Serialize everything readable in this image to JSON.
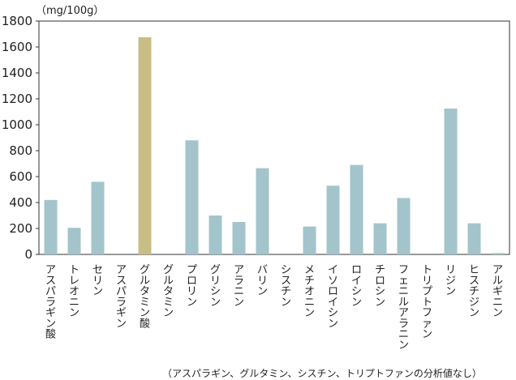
{
  "chart_data": {
    "type": "bar",
    "unit_label": "（mg/100g）",
    "ylim": [
      0,
      1800
    ],
    "yticks": [
      0,
      200,
      400,
      600,
      800,
      1000,
      1200,
      1400,
      1600,
      1800
    ],
    "grid": false,
    "categories": [
      "アスパラギン酸",
      "トレオニン",
      "セリン",
      "アスパラギン",
      "グルタミン酸",
      "グルタミン",
      "プロリン",
      "グリシン",
      "アラニン",
      "バリン",
      "シスチン",
      "メチオニン",
      "イソロイシン",
      "ロイシン",
      "チロシン",
      "フェニルアラニン",
      "トリプトファン",
      "リジン",
      "ヒスチジン",
      "アルギニン"
    ],
    "values": [
      420,
      205,
      560,
      0,
      1675,
      0,
      880,
      300,
      250,
      665,
      0,
      215,
      530,
      690,
      240,
      435,
      0,
      1125,
      240,
      10
    ],
    "colors": {
      "default": "#a3c4cb",
      "highlight": "#c9bd86",
      "axis": "#333333"
    },
    "highlight_category": "グルタミン酸",
    "note": "（アスパラギン、グルタミン、シスチン、トリプトファンの分析値なし）"
  }
}
